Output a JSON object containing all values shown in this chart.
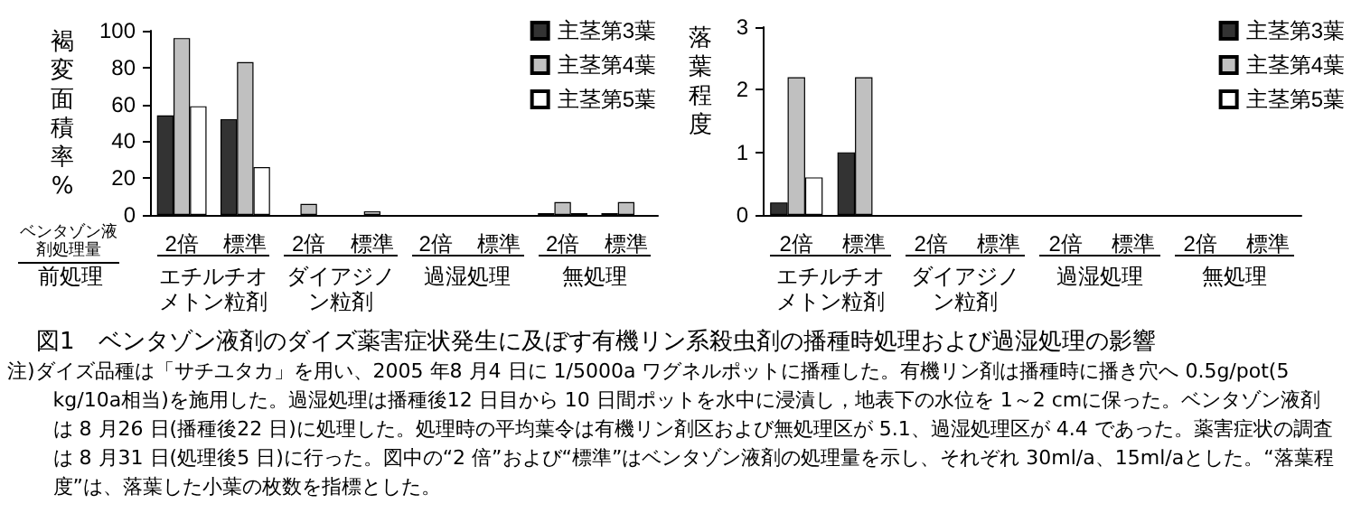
{
  "chart_data": [
    {
      "type": "bar",
      "title": "図1　ベンタゾン液剤のダイズ薬害症状発生に及ぼす有機リン系殺虫剤の播種時処理および過湿処理の影響",
      "ylabel": "褐変面積率%",
      "categories": [
        "2倍",
        "標準",
        "2倍",
        "標準",
        "2倍",
        "標準",
        "2倍",
        "標準"
      ],
      "series": [
        {
          "name": "主茎第3葉",
          "color": "#333333",
          "values": [
            54,
            52,
            0,
            0,
            0,
            0,
            1,
            1
          ]
        },
        {
          "name": "主茎第4葉",
          "color": "#c0c0c0",
          "values": [
            96,
            83,
            6,
            2,
            0,
            0,
            7,
            7
          ]
        },
        {
          "name": "主茎第5葉",
          "color": "#ffffff",
          "values": [
            59,
            26,
            0,
            0,
            0,
            0,
            1,
            0
          ]
        }
      ],
      "ylim": [
        0,
        100
      ],
      "yticks": [
        0,
        20,
        40,
        60,
        80,
        100
      ],
      "grid": false,
      "legend": "top right",
      "annotations": [
        "注)ダイズ品種は「サチユタカ」を用い、2005 年8 月4 日に 1/5000a ワグネルポットに播種した。有機リン剤は播種時に播き穴へ 0.5g/pot(5 kg/10a相当)を施用した。過湿処理は播種後12 日目から 10 日間ポットを水中に浸漬し，地表下の水位を 1～2 cmに保った。ベンタゾン液剤は 8 月26 日(播種後22 日)に処理した。処理時の平均葉令は有機リン剤区および無処理区が 5.1、過湿処理区が 4.4 であった。薬害症状の調査は 8 月31 日(処理後5 日)に行った。図中の“2 倍”および“標準”はベンタゾン液剤の処理量を示し、それぞれ 30ml/a、15ml/aとした。“落葉程度”は、落葉した小葉の枚数を指標とした。",
        "ベンタゾン液剤処理量",
        "前処理",
        "エチルチオメトン粒剤",
        "ダイアジノン粒剤",
        "過湿処理",
        "無処理"
      ]
    },
    {
      "type": "bar",
      "ylabel": "落葉程度",
      "categories": [
        "2倍",
        "標準",
        "2倍",
        "標準",
        "2倍",
        "標準",
        "2倍",
        "標準"
      ],
      "series": [
        {
          "name": "主茎第3葉",
          "color": "#333333",
          "values": [
            0.2,
            1.0,
            0,
            0,
            0,
            0,
            0,
            0
          ]
        },
        {
          "name": "主茎第4葉",
          "color": "#c0c0c0",
          "values": [
            2.2,
            2.2,
            0,
            0,
            0,
            0,
            0,
            0
          ]
        },
        {
          "name": "主茎第5葉",
          "color": "#ffffff",
          "values": [
            0.6,
            0,
            0,
            0,
            0,
            0,
            0,
            0
          ]
        }
      ],
      "ylim": [
        0,
        3
      ],
      "yticks": [
        0,
        1,
        2,
        3
      ],
      "grid": false,
      "legend": "top right",
      "annotations": [
        "エチルチオメトン粒剤",
        "ダイアジノン粒剤",
        "過湿処理",
        "無処理"
      ]
    }
  ]
}
